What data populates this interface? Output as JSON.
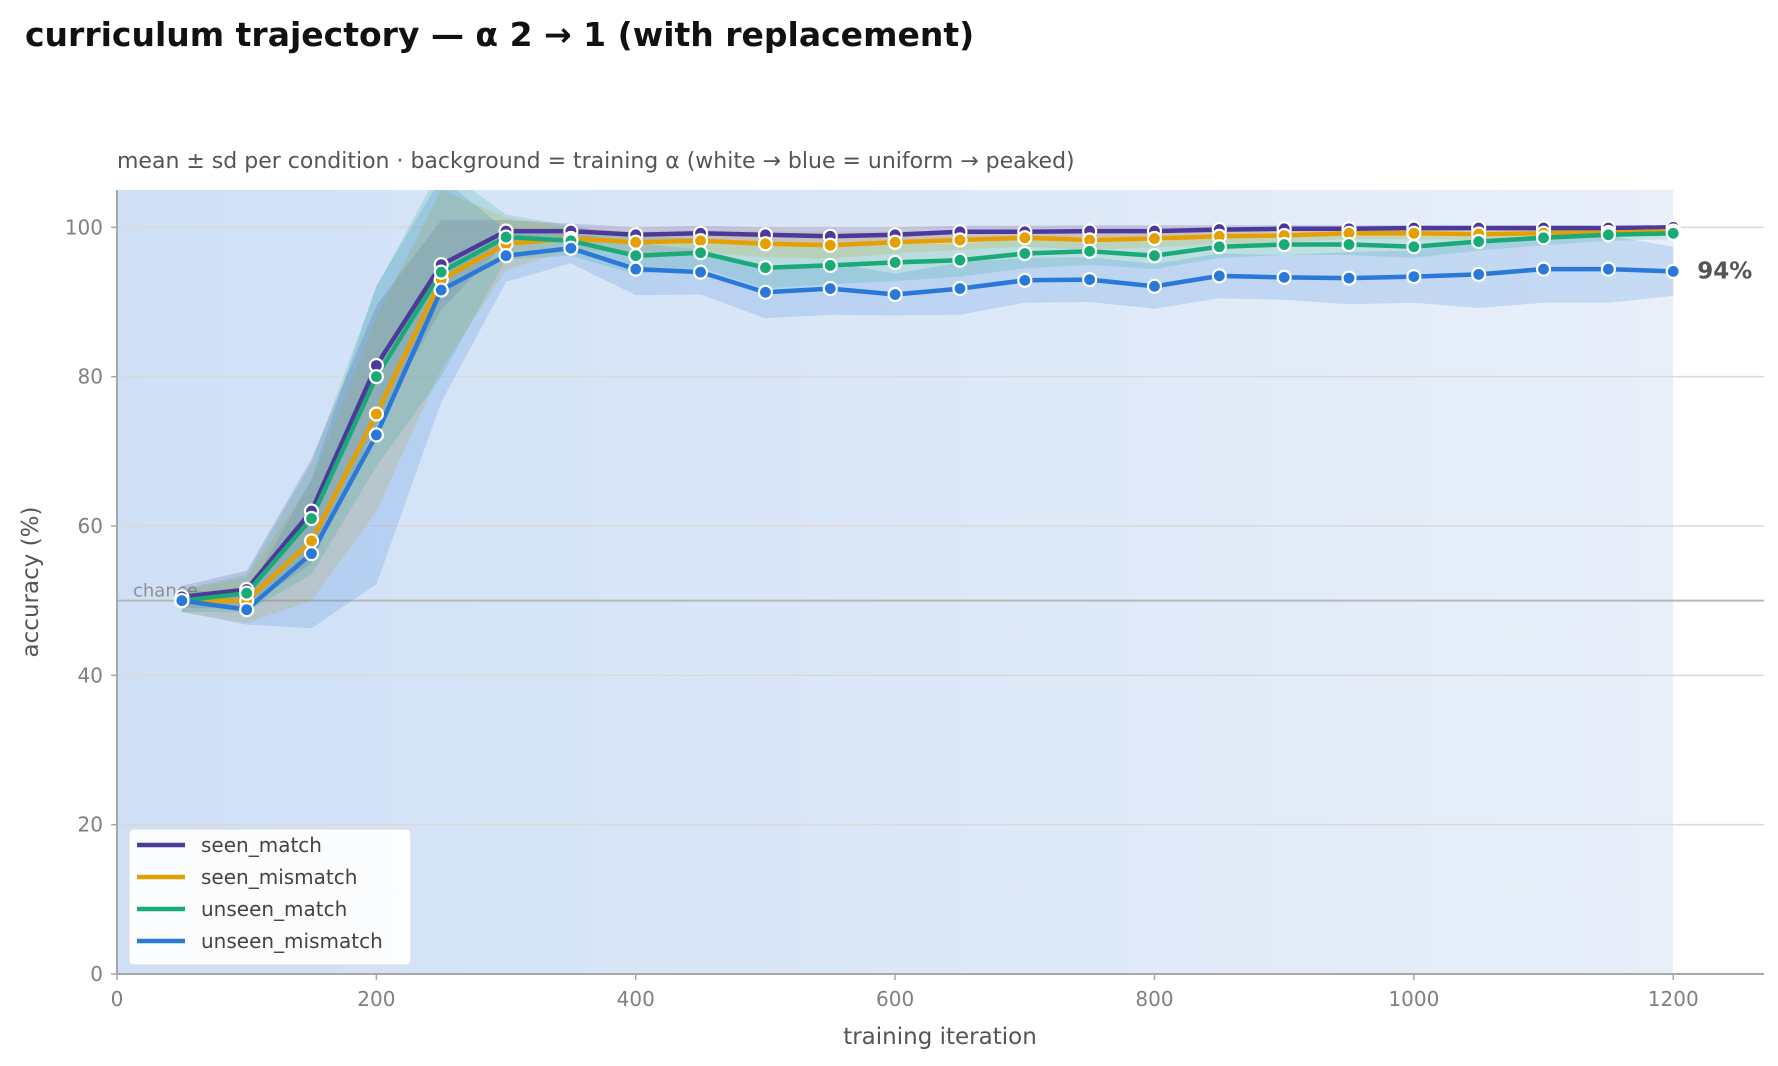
{
  "chart_data": {
    "type": "line",
    "title": "curriculum trajectory — α 2 → 1 (with replacement)",
    "subtitle": "mean ± sd per condition · background = training α (white → blue = uniform → peaked)",
    "xlabel": "training iteration",
    "ylabel": "accuracy (%)",
    "xlim": [
      0,
      1270
    ],
    "ylim": [
      0,
      105
    ],
    "xticks": [
      0,
      200,
      400,
      600,
      800,
      1000,
      1200
    ],
    "yticks": [
      0,
      20,
      40,
      60,
      80,
      100
    ],
    "grid": "horizontal",
    "legend_position": "bottom-left",
    "chance_level": 50,
    "chance_label": "chance",
    "end_label": "94%",
    "end_label_series": "unseen_mismatch",
    "background": {
      "description_printed_in_subtitle": true,
      "x_start": 0,
      "x_end": 1200,
      "color_peaked": "#cfe0f6",
      "color_uniform": "#e8eff9"
    },
    "x": [
      50,
      100,
      150,
      200,
      250,
      300,
      350,
      400,
      450,
      500,
      550,
      600,
      650,
      700,
      750,
      800,
      850,
      900,
      950,
      1000,
      1050,
      1100,
      1150,
      1200
    ],
    "series": [
      {
        "name": "seen_match",
        "color": "#4b3a9c",
        "values": [
          50.5,
          51.5,
          62.0,
          81.5,
          95.0,
          99.5,
          99.5,
          99.0,
          99.2,
          99.0,
          98.8,
          99.0,
          99.4,
          99.4,
          99.5,
          99.5,
          99.7,
          99.8,
          99.8,
          99.9,
          99.9,
          99.9,
          99.9,
          100.0
        ],
        "sd": [
          1.5,
          2.5,
          7.0,
          8.0,
          6.0,
          1.5,
          1.0,
          1.0,
          1.0,
          1.0,
          1.2,
          1.0,
          0.8,
          0.8,
          0.8,
          0.8,
          0.6,
          0.5,
          0.5,
          0.4,
          0.4,
          0.4,
          0.4,
          0.2
        ]
      },
      {
        "name": "seen_mismatch",
        "color": "#e69f00",
        "values": [
          50.0,
          50.0,
          58.0,
          75.0,
          93.0,
          97.8,
          98.5,
          98.0,
          98.2,
          97.8,
          97.6,
          98.0,
          98.3,
          98.6,
          98.3,
          98.5,
          98.8,
          98.9,
          99.2,
          99.2,
          99.1,
          99.2,
          99.3,
          99.5
        ],
        "sd": [
          1.5,
          3.0,
          8.0,
          13.0,
          12.0,
          3.5,
          1.5,
          1.5,
          1.5,
          1.8,
          1.8,
          1.5,
          1.3,
          1.2,
          1.3,
          1.2,
          1.0,
          0.9,
          0.8,
          0.8,
          0.8,
          0.7,
          0.7,
          0.5
        ]
      },
      {
        "name": "unseen_match",
        "color": "#1aaa78",
        "values": [
          50.0,
          51.0,
          61.0,
          80.0,
          94.0,
          98.7,
          98.2,
          96.2,
          96.6,
          94.6,
          94.9,
          95.3,
          95.6,
          96.5,
          96.8,
          96.2,
          97.4,
          97.7,
          97.7,
          97.4,
          98.1,
          98.6,
          99.0,
          99.2
        ],
        "sd": [
          1.5,
          2.5,
          7.5,
          12.0,
          14.0,
          3.0,
          2.0,
          2.5,
          2.0,
          2.8,
          2.5,
          2.5,
          2.2,
          2.0,
          1.8,
          1.8,
          1.5,
          1.4,
          1.4,
          1.5,
          1.2,
          1.0,
          0.8,
          0.8
        ]
      },
      {
        "name": "unseen_mismatch",
        "color": "#2a78d8",
        "values": [
          50.0,
          48.8,
          56.3,
          72.2,
          91.6,
          96.2,
          97.2,
          94.4,
          94.0,
          91.3,
          91.8,
          91.0,
          91.8,
          92.9,
          93.0,
          92.1,
          93.5,
          93.3,
          93.2,
          93.4,
          93.7,
          94.4,
          94.4,
          94.1
        ],
        "sd": [
          1.5,
          2.0,
          10.0,
          20.0,
          15.0,
          3.5,
          2.0,
          3.5,
          3.0,
          3.5,
          3.5,
          2.8,
          3.5,
          3.0,
          3.0,
          3.0,
          3.0,
          3.0,
          3.5,
          3.5,
          4.5,
          4.5,
          4.5,
          3.3
        ]
      }
    ]
  }
}
